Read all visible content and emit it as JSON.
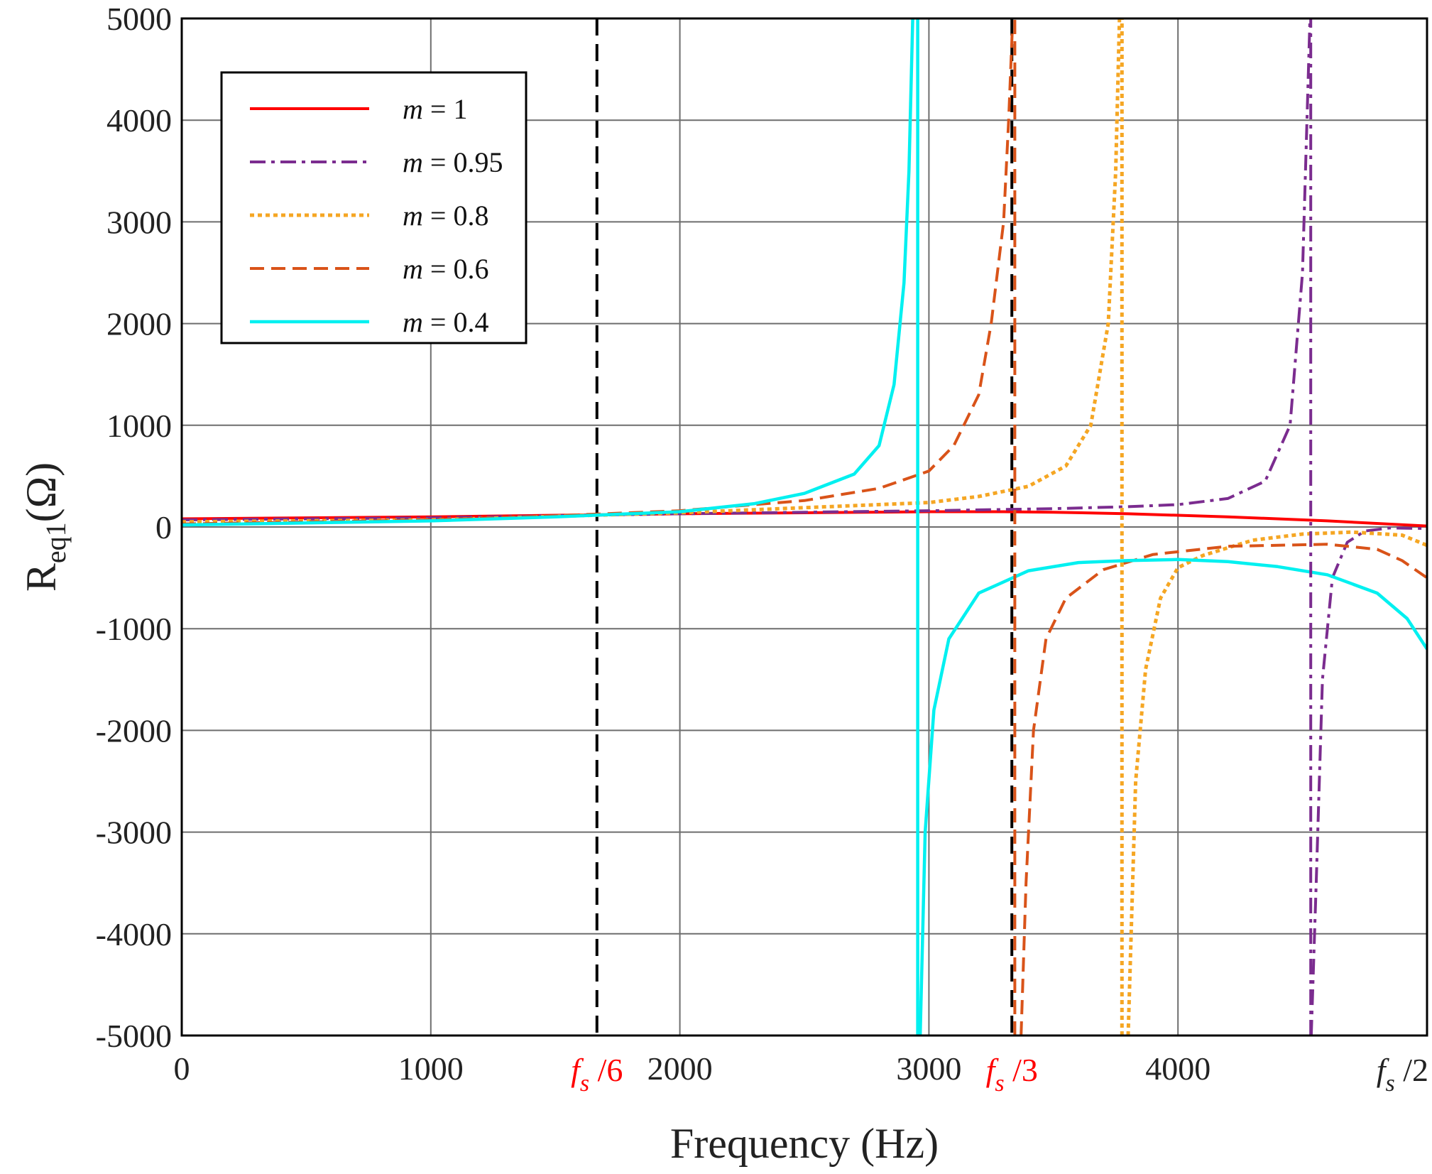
{
  "chart_data": {
    "type": "line",
    "xlabel": "Frequency (Hz)",
    "ylabel_main": "R",
    "ylabel_sub": "eq1",
    "ylabel_unit": "(Ω)",
    "xlim": [
      0,
      5000
    ],
    "ylim": [
      -5000,
      5000
    ],
    "grid": true,
    "x_ticks": [
      0,
      1000,
      2000,
      3000,
      4000
    ],
    "x_tick_labels": [
      "0",
      "1000",
      "2000",
      "3000",
      "4000"
    ],
    "y_ticks": [
      -5000,
      -4000,
      -3000,
      -2000,
      -1000,
      0,
      1000,
      2000,
      3000,
      4000,
      5000
    ],
    "y_tick_labels": [
      "-5000",
      "-4000",
      "-3000",
      "-2000",
      "-1000",
      "0",
      "1000",
      "2000",
      "3000",
      "4000",
      "5000"
    ],
    "markers": [
      {
        "x": 1667,
        "label_main": "f",
        "label_sub": "s",
        "label_suffix": "/6",
        "color": "#ff0000"
      },
      {
        "x": 3333,
        "label_main": "f",
        "label_sub": "s",
        "label_suffix": "/3",
        "color": "#ff0000"
      },
      {
        "x": 5000,
        "label_main": "f",
        "label_sub": "s",
        "label_suffix": "/2",
        "color": "#222222"
      }
    ],
    "legend_position": "top-left",
    "series": [
      {
        "name": "m = 1",
        "legend_var": "m",
        "legend_rest": "= 1",
        "color": "#ff0000",
        "dash": "",
        "width": 4,
        "segments": [
          [
            [
              0,
              80
            ],
            [
              500,
              90
            ],
            [
              1000,
              100
            ],
            [
              1500,
              115
            ],
            [
              2000,
              130
            ],
            [
              2500,
              140
            ],
            [
              3000,
              150
            ],
            [
              3300,
              150
            ],
            [
              3500,
              145
            ],
            [
              3800,
              130
            ],
            [
              4200,
              100
            ],
            [
              4600,
              60
            ],
            [
              5000,
              10
            ]
          ]
        ]
      },
      {
        "name": "m = 0.95",
        "legend_var": "m",
        "legend_rest": "= 0.95",
        "color": "#7b2c8f",
        "dash": "22,8,5,8",
        "width": 4,
        "segments": [
          [
            [
              0,
              70
            ],
            [
              1000,
              90
            ],
            [
              2000,
              130
            ],
            [
              3000,
              160
            ],
            [
              3500,
              180
            ],
            [
              3800,
              200
            ],
            [
              4000,
              220
            ],
            [
              4200,
              280
            ],
            [
              4350,
              450
            ],
            [
              4450,
              1000
            ],
            [
              4500,
              2500
            ],
            [
              4530,
              5000
            ]
          ],
          [
            [
              4535,
              -5000
            ],
            [
              4555,
              -3500
            ],
            [
              4580,
              -1500
            ],
            [
              4620,
              -500
            ],
            [
              4680,
              -150
            ],
            [
              4750,
              -40
            ],
            [
              4850,
              -10
            ],
            [
              5000,
              -15
            ]
          ]
        ]
      },
      {
        "name": "m = 0.8",
        "legend_var": "m",
        "legend_rest": "= 0.8",
        "color": "#f5a623",
        "dash": "6,5",
        "width": 5,
        "segments": [
          [
            [
              0,
              50
            ],
            [
              1000,
              70
            ],
            [
              2000,
              140
            ],
            [
              2500,
              190
            ],
            [
              3000,
              240
            ],
            [
              3200,
              300
            ],
            [
              3400,
              400
            ],
            [
              3550,
              600
            ],
            [
              3650,
              1000
            ],
            [
              3720,
              2000
            ],
            [
              3750,
              3500
            ],
            [
              3765,
              5000
            ]
          ],
          [
            [
              3800,
              -5000
            ],
            [
              3830,
              -2500
            ],
            [
              3870,
              -1400
            ],
            [
              3930,
              -700
            ],
            [
              4000,
              -400
            ],
            [
              4100,
              -280
            ],
            [
              4300,
              -130
            ],
            [
              4500,
              -70
            ],
            [
              4700,
              -50
            ],
            [
              4900,
              -80
            ],
            [
              5000,
              -180
            ]
          ]
        ]
      },
      {
        "name": "m = 0.6",
        "legend_var": "m",
        "legend_rest": "= 0.6",
        "color": "#d95319",
        "dash": "20,10",
        "width": 4,
        "segments": [
          [
            [
              0,
              30
            ],
            [
              1000,
              70
            ],
            [
              1500,
              110
            ],
            [
              2000,
              160
            ],
            [
              2500,
              260
            ],
            [
              2800,
              380
            ],
            [
              3000,
              550
            ],
            [
              3100,
              800
            ],
            [
              3200,
              1300
            ],
            [
              3250,
              2000
            ],
            [
              3300,
              3000
            ],
            [
              3320,
              4000
            ],
            [
              3335,
              4900
            ]
          ],
          [
            [
              3370,
              -5000
            ],
            [
              3390,
              -3500
            ],
            [
              3420,
              -2000
            ],
            [
              3470,
              -1100
            ],
            [
              3550,
              -700
            ],
            [
              3700,
              -420
            ],
            [
              3900,
              -270
            ],
            [
              4200,
              -190
            ],
            [
              4600,
              -170
            ],
            [
              4800,
              -220
            ],
            [
              4900,
              -330
            ],
            [
              5000,
              -500
            ]
          ]
        ]
      },
      {
        "name": "m = 0.4",
        "legend_var": "m",
        "legend_rest": "= 0.4",
        "color": "#00f0f0",
        "dash": "",
        "width": 4.5,
        "segments": [
          [
            [
              0,
              20
            ],
            [
              500,
              40
            ],
            [
              1000,
              60
            ],
            [
              1500,
              100
            ],
            [
              2000,
              150
            ],
            [
              2300,
              230
            ],
            [
              2500,
              330
            ],
            [
              2700,
              520
            ],
            [
              2800,
              800
            ],
            [
              2860,
              1400
            ],
            [
              2900,
              2400
            ],
            [
              2920,
              3500
            ],
            [
              2935,
              5000
            ]
          ],
          [
            [
              2965,
              -5000
            ],
            [
              2985,
              -3000
            ],
            [
              3020,
              -1800
            ],
            [
              3080,
              -1100
            ],
            [
              3200,
              -650
            ],
            [
              3400,
              -430
            ],
            [
              3600,
              -350
            ],
            [
              3800,
              -330
            ],
            [
              4000,
              -320
            ],
            [
              4200,
              -340
            ],
            [
              4400,
              -390
            ],
            [
              4600,
              -470
            ],
            [
              4800,
              -650
            ],
            [
              4920,
              -900
            ],
            [
              5000,
              -1200
            ]
          ]
        ]
      },
      {
        "name": "m = 0.95 asymptote",
        "legend": false,
        "color": "#7b2c8f",
        "dash": "22,8,5,8",
        "width": 4,
        "segments": [
          [
            [
              4533,
              -5000
            ],
            [
              4533,
              5000
            ]
          ]
        ]
      },
      {
        "name": "m = 0.8 asymptote",
        "legend": false,
        "color": "#f5a623",
        "dash": "6,5",
        "width": 5,
        "segments": [
          [
            [
              3775,
              -5000
            ],
            [
              3775,
              5000
            ]
          ]
        ]
      },
      {
        "name": "m = 0.6 asymptote",
        "legend": false,
        "color": "#d95319",
        "dash": "20,10",
        "width": 4,
        "segments": [
          [
            [
              3345,
              -5000
            ],
            [
              3345,
              5000
            ]
          ]
        ]
      },
      {
        "name": "m = 0.4 asymptote",
        "legend": false,
        "color": "#00f0f0",
        "dash": "",
        "width": 4.5,
        "segments": [
          [
            [
              2955,
              -5000
            ],
            [
              2955,
              5000
            ]
          ]
        ]
      }
    ]
  }
}
